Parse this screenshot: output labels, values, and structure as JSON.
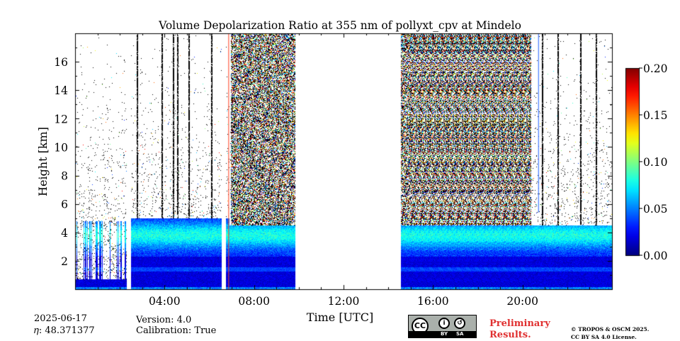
{
  "chart_data": {
    "type": "heatmap",
    "title": "Volume Depolarization Ratio at 355 nm of pollyxt_cpv at Mindelo",
    "xlabel": "Time [UTC]",
    "ylabel": "Height [km]",
    "xlim_hours": [
      0,
      24
    ],
    "ylim_km": [
      0,
      18
    ],
    "x_ticks": [
      {
        "hour": 4,
        "label": "04:00"
      },
      {
        "hour": 8,
        "label": "08:00"
      },
      {
        "hour": 12,
        "label": "12:00"
      },
      {
        "hour": 16,
        "label": "16:00"
      },
      {
        "hour": 20,
        "label": "20:00"
      }
    ],
    "y_ticks": [
      {
        "km": 2,
        "label": "2"
      },
      {
        "km": 4,
        "label": "4"
      },
      {
        "km": 6,
        "label": "6"
      },
      {
        "km": 8,
        "label": "8"
      },
      {
        "km": 10,
        "label": "10"
      },
      {
        "km": 12,
        "label": "12"
      },
      {
        "km": 14,
        "label": "14"
      },
      {
        "km": 16,
        "label": "16"
      }
    ],
    "colorbar": {
      "range": [
        0.0,
        0.2
      ],
      "colormap": "jet",
      "ticks": [
        {
          "value": 0.0,
          "label": "0.00"
        },
        {
          "value": 0.05,
          "label": "0.05"
        },
        {
          "value": 0.1,
          "label": "0.10"
        },
        {
          "value": 0.15,
          "label": "0.15"
        },
        {
          "value": 0.2,
          "label": "0.20"
        }
      ]
    },
    "data_gaps_hours": [
      [
        9.85,
        14.55
      ]
    ],
    "noisy_periods_hours": [
      [
        6.95,
        9.85
      ],
      [
        14.55,
        20.4
      ]
    ],
    "aerosol_layer_top_km": 4.5,
    "approx_values": {
      "boundary_layer": 0.02,
      "dust_layer_3_4km": 0.08,
      "noise": 0.1
    }
  },
  "footer": {
    "date": "2025-06-17",
    "eta": "𝜂: 48.371377",
    "version": "Version: 4.0",
    "calibration": "Calibration: True",
    "preliminary": "Preliminary\nResults.",
    "copyright": "© TROPOS & OSCM 2025.\nCC BY SA 4.0 License.",
    "cc_badge": {
      "main": "CC",
      "by": "BY",
      "sa": "SA"
    }
  }
}
